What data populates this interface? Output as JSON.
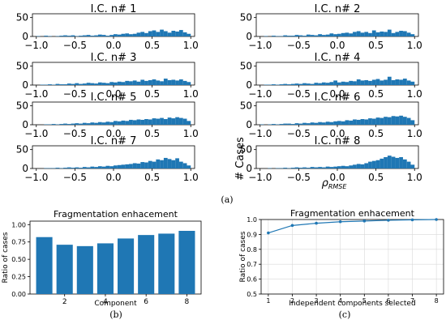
{
  "panels": {
    "a": {
      "label": "(a)"
    },
    "b": {
      "label": "(b)"
    },
    "c": {
      "label": "(c)"
    }
  },
  "histograms": {
    "x_ticks": [
      "−1.0",
      "−0.5",
      "0.0",
      "0.5",
      "1.0"
    ],
    "x_tick_values": [
      -1.0,
      -0.5,
      0.0,
      0.5,
      1.0
    ],
    "y_ticks": [
      "0",
      "50"
    ],
    "y_tick_values": [
      0,
      50
    ],
    "xlim": [
      -1.05,
      1.05
    ],
    "ylim": [
      0,
      60
    ],
    "ylabel": "# Cases",
    "xlabel_main": "ρ",
    "xlabel_sub": "RMSE",
    "color": "#1f77b4",
    "bin_edges_start": -1.0,
    "bin_width": 0.05,
    "items": [
      {
        "title": "I.C. n# 1",
        "counts": [
          1,
          0,
          2,
          1,
          0,
          1,
          2,
          3,
          2,
          3,
          1,
          2,
          3,
          4,
          2,
          3,
          5,
          4,
          2,
          4,
          6,
          5,
          7,
          8,
          6,
          7,
          10,
          12,
          9,
          14,
          16,
          12,
          18,
          14,
          10,
          15,
          13,
          17,
          11,
          7
        ]
      },
      {
        "title": "I.C. n# 2",
        "counts": [
          0,
          1,
          0,
          2,
          1,
          1,
          3,
          2,
          2,
          4,
          3,
          2,
          5,
          4,
          3,
          6,
          4,
          5,
          8,
          6,
          7,
          9,
          10,
          8,
          12,
          14,
          10,
          12,
          9,
          16,
          11,
          13,
          12,
          18,
          9,
          12,
          15,
          14,
          10,
          6
        ]
      },
      {
        "title": "I.C. n# 3",
        "counts": [
          0,
          1,
          1,
          2,
          1,
          3,
          2,
          2,
          4,
          3,
          5,
          3,
          4,
          6,
          5,
          4,
          7,
          6,
          5,
          8,
          7,
          9,
          8,
          11,
          10,
          12,
          9,
          14,
          11,
          13,
          15,
          12,
          10,
          17,
          13,
          14,
          12,
          15,
          11,
          8
        ]
      },
      {
        "title": "I.C. n# 4",
        "counts": [
          0,
          1,
          1,
          2,
          1,
          2,
          3,
          2,
          3,
          4,
          3,
          5,
          4,
          3,
          6,
          5,
          7,
          6,
          8,
          12,
          7,
          9,
          8,
          11,
          10,
          15,
          12,
          13,
          11,
          14,
          16,
          12,
          14,
          22,
          13,
          15,
          14,
          17,
          12,
          9
        ]
      },
      {
        "title": "I.C. n# 5",
        "counts": [
          0,
          0,
          1,
          1,
          2,
          1,
          2,
          3,
          2,
          3,
          4,
          3,
          5,
          4,
          6,
          5,
          7,
          6,
          8,
          7,
          10,
          9,
          11,
          10,
          13,
          12,
          14,
          13,
          15,
          14,
          17,
          16,
          18,
          15,
          19,
          17,
          20,
          18,
          16,
          10
        ]
      },
      {
        "title": "I.C. n# 6",
        "counts": [
          1,
          0,
          1,
          2,
          1,
          2,
          3,
          3,
          2,
          4,
          3,
          5,
          4,
          6,
          5,
          7,
          6,
          8,
          7,
          9,
          10,
          9,
          12,
          11,
          14,
          13,
          15,
          14,
          17,
          16,
          19,
          18,
          21,
          20,
          23,
          22,
          24,
          21,
          18,
          12
        ]
      },
      {
        "title": "I.C. n# 7",
        "counts": [
          0,
          0,
          1,
          1,
          1,
          2,
          1,
          2,
          3,
          2,
          3,
          2,
          4,
          3,
          5,
          4,
          6,
          5,
          7,
          6,
          8,
          9,
          10,
          11,
          12,
          14,
          13,
          17,
          16,
          20,
          18,
          24,
          22,
          28,
          25,
          22,
          27,
          18,
          14,
          8
        ]
      },
      {
        "title": "I.C. n# 8",
        "counts": [
          0,
          0,
          1,
          0,
          1,
          1,
          2,
          1,
          2,
          3,
          2,
          3,
          2,
          4,
          3,
          4,
          3,
          5,
          4,
          5,
          6,
          7,
          6,
          8,
          10,
          12,
          11,
          14,
          18,
          20,
          22,
          26,
          30,
          34,
          31,
          28,
          30,
          24,
          18,
          10
        ]
      }
    ]
  },
  "chart_data": [
    {
      "type": "bar",
      "title": "Fragmentation enhacement",
      "xlabel": "Component",
      "ylabel": "Ratio of cases",
      "categories": [
        1,
        2,
        3,
        4,
        5,
        6,
        7,
        8
      ],
      "values": [
        0.82,
        0.71,
        0.69,
        0.73,
        0.8,
        0.85,
        0.87,
        0.91
      ],
      "x_ticks": [
        "2",
        "4",
        "6",
        "8"
      ],
      "x_tick_values": [
        2,
        4,
        6,
        8
      ],
      "y_ticks": [
        "0.00",
        "0.25",
        "0.50",
        "0.75",
        "1.00"
      ],
      "y_tick_values": [
        0,
        0.25,
        0.5,
        0.75,
        1.0
      ],
      "ylim": [
        0,
        1.05
      ],
      "color": "#1f77b4",
      "grid": false
    },
    {
      "type": "line",
      "title": "Fragmentation enhacement",
      "xlabel": "Independent components selected",
      "ylabel": "Ratio of cases",
      "x": [
        1,
        2,
        3,
        4,
        5,
        6,
        7,
        8
      ],
      "y": [
        0.91,
        0.96,
        0.975,
        0.985,
        0.99,
        0.995,
        0.998,
        1.0
      ],
      "x_ticks": [
        "1",
        "2",
        "3",
        "4",
        "5",
        "6",
        "7",
        "8"
      ],
      "y_ticks": [
        "0.5",
        "0.6",
        "0.7",
        "0.8",
        "0.9",
        "1.0"
      ],
      "y_tick_values": [
        0.5,
        0.6,
        0.7,
        0.8,
        0.9,
        1.0
      ],
      "xlim": [
        0.7,
        8.3
      ],
      "ylim": [
        0.5,
        1.0
      ],
      "color": "#1f77b4",
      "grid": true
    }
  ]
}
